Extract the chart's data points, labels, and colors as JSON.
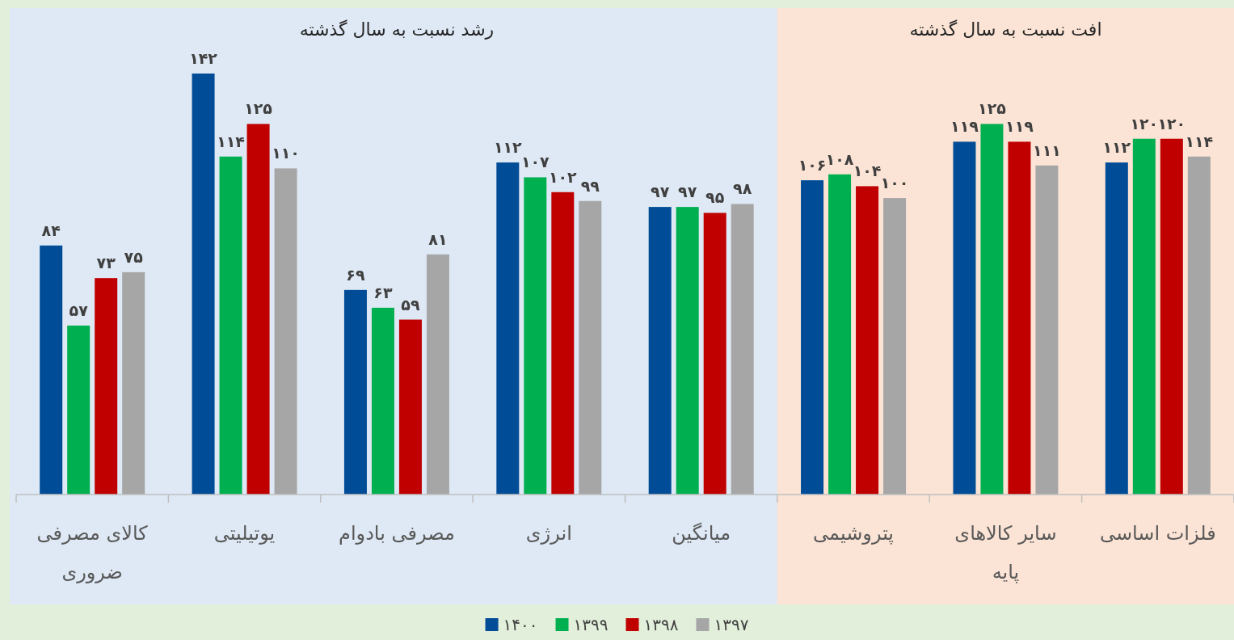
{
  "chart_data": {
    "type": "bar",
    "categories": [
      "کالای مصرفی ضروری",
      "یوتیلیتی",
      "مصرفی بادوام",
      "انرژی",
      "میانگین",
      "پتروشیمی",
      "سایر کالاهای پایه",
      "فلزات اساسی"
    ],
    "series": [
      {
        "name": "۱۴۰۰",
        "color": "#004c97",
        "values": [
          84,
          142,
          69,
          112,
          97,
          106,
          119,
          112
        ],
        "value_labels": [
          "۸۴",
          "۱۴۲",
          "۶۹",
          "۱۱۲",
          "۹۷",
          "۱۰۶",
          "۱۱۹",
          "۱۱۲"
        ]
      },
      {
        "name": "۱۳۹۹",
        "color": "#00b050",
        "values": [
          57,
          114,
          63,
          107,
          97,
          108,
          125,
          120
        ],
        "value_labels": [
          "۵۷",
          "۱۱۴",
          "۶۳",
          "۱۰۷",
          "۹۷",
          "۱۰۸",
          "۱۲۵",
          "۱۲۰"
        ]
      },
      {
        "name": "۱۳۹۸",
        "color": "#c00000",
        "values": [
          73,
          125,
          59,
          102,
          95,
          104,
          119,
          120
        ],
        "value_labels": [
          "۷۳",
          "۱۲۵",
          "۵۹",
          "۱۰۲",
          "۹۵",
          "۱۰۴",
          "۱۱۹",
          "۱۲۰"
        ]
      },
      {
        "name": "۱۳۹۷",
        "color": "#a6a6a6",
        "values": [
          75,
          110,
          81,
          99,
          98,
          100,
          111,
          114
        ],
        "value_labels": [
          "۷۵",
          "۱۱۰",
          "۸۱",
          "۹۹",
          "۹۸",
          "۱۰۰",
          "۱۱۱",
          "۱۱۴"
        ]
      }
    ],
    "annotations": [
      "رشد نسبت به سال گذشته",
      "افت نسبت به سال گذشته"
    ],
    "legend": "bottom"
  }
}
